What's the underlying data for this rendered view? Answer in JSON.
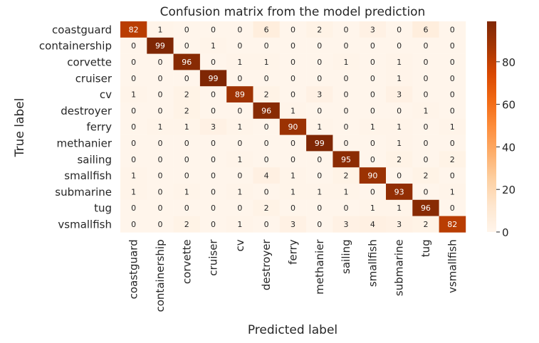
{
  "chart_data": {
    "type": "heatmap",
    "title": "Confusion matrix from the model prediction",
    "xlabel": "Predicted label",
    "ylabel": "True label",
    "labels": [
      "coastguard",
      "containership",
      "corvette",
      "cruiser",
      "cv",
      "destroyer",
      "ferry",
      "methanier",
      "sailing",
      "smallfish",
      "submarine",
      "tug",
      "vsmallfish"
    ],
    "matrix": [
      [
        82,
        1,
        0,
        0,
        0,
        6,
        0,
        2,
        0,
        3,
        0,
        6,
        0
      ],
      [
        0,
        99,
        0,
        1,
        0,
        0,
        0,
        0,
        0,
        0,
        0,
        0,
        0
      ],
      [
        0,
        0,
        96,
        0,
        1,
        1,
        0,
        0,
        1,
        0,
        1,
        0,
        0
      ],
      [
        0,
        0,
        0,
        99,
        0,
        0,
        0,
        0,
        0,
        0,
        1,
        0,
        0
      ],
      [
        1,
        0,
        2,
        0,
        89,
        2,
        0,
        3,
        0,
        0,
        3,
        0,
        0
      ],
      [
        0,
        0,
        2,
        0,
        0,
        96,
        1,
        0,
        0,
        0,
        0,
        1,
        0
      ],
      [
        0,
        1,
        1,
        3,
        1,
        0,
        90,
        1,
        0,
        1,
        1,
        0,
        1
      ],
      [
        0,
        0,
        0,
        0,
        0,
        0,
        0,
        99,
        0,
        0,
        1,
        0,
        0
      ],
      [
        0,
        0,
        0,
        0,
        1,
        0,
        0,
        0,
        95,
        0,
        2,
        0,
        2
      ],
      [
        1,
        0,
        0,
        0,
        0,
        4,
        1,
        0,
        2,
        90,
        0,
        2,
        0
      ],
      [
        1,
        0,
        1,
        0,
        1,
        0,
        1,
        1,
        1,
        0,
        93,
        0,
        1
      ],
      [
        0,
        0,
        0,
        0,
        0,
        2,
        0,
        0,
        0,
        1,
        1,
        96,
        0
      ],
      [
        0,
        0,
        2,
        0,
        1,
        0,
        3,
        0,
        3,
        4,
        3,
        2,
        82
      ]
    ],
    "colorbar": {
      "min": 0,
      "max": 99,
      "ticks": [
        0,
        20,
        40,
        60,
        80
      ]
    },
    "colormap": [
      "#fff5eb",
      "#fee6ce",
      "#fdd0a2",
      "#fdae6b",
      "#fd8d3c",
      "#f16913",
      "#d94801",
      "#a63603",
      "#7f2704"
    ]
  }
}
